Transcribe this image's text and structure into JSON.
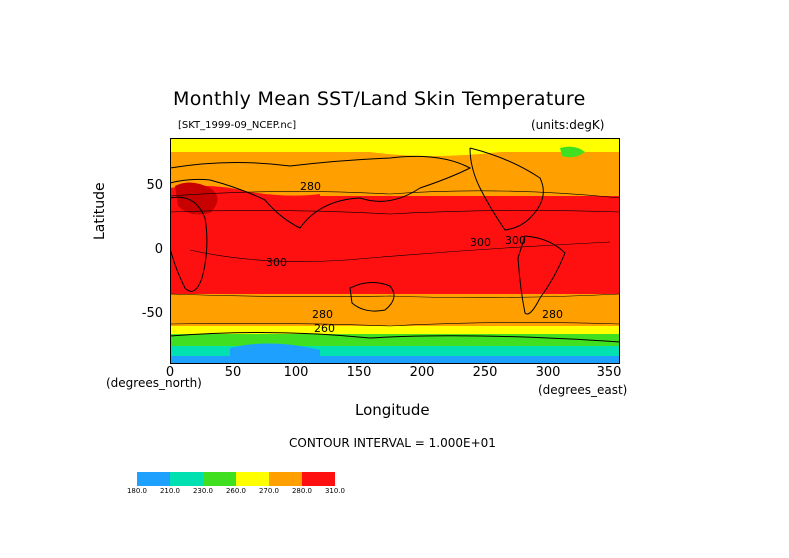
{
  "title": "Monthly Mean SST/Land Skin Temperature",
  "file_label": "[SKT_1999-09_NCEP.nc]",
  "units_label": "(units:degK)",
  "y_axis": {
    "label": "Latitude",
    "unit_label": "(degrees_north)",
    "ticks": [
      "50",
      "0",
      "-50"
    ]
  },
  "x_axis": {
    "label": "Longitude",
    "unit_label": "(degrees_east)",
    "ticks": [
      "0",
      "50",
      "100",
      "150",
      "200",
      "250",
      "300",
      "350"
    ]
  },
  "contour_interval": "CONTOUR INTERVAL = 1.000E+01",
  "contour_labels": [
    "280",
    "300",
    "300",
    "300",
    "280",
    "280",
    "260"
  ],
  "colorbar": {
    "colors": [
      "#1ea0ff",
      "#00e0b0",
      "#40e020",
      "#ffff00",
      "#ffa000",
      "#ff1010"
    ],
    "labels": [
      "180.0",
      "210.0",
      "230.0",
      "260.0",
      "270.0",
      "280.0",
      "310.0"
    ]
  },
  "map_colors": {
    "cold": "#1ea0ff",
    "cool": "#00e0b0",
    "green": "#40e020",
    "yellow": "#ffff00",
    "orange": "#ffa000",
    "red": "#ff1010",
    "dark": "#c80000"
  }
}
